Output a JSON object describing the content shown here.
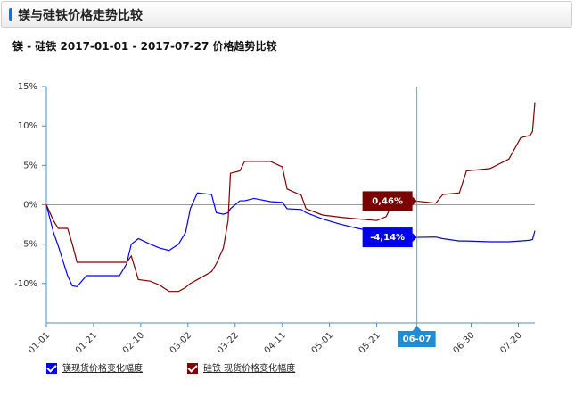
{
  "header": {
    "title": "镁与硅铁价格走势比较"
  },
  "chart_data": {
    "type": "line",
    "title": "镁 - 硅铁 2017-01-01 - 2017-07-27 价格趋势比较",
    "x": [
      "01-01",
      "01-04",
      "01-06",
      "01-10",
      "01-12",
      "01-14",
      "01-18",
      "02-01",
      "02-04",
      "02-06",
      "02-09",
      "02-14",
      "02-18",
      "02-22",
      "02-26",
      "03-01",
      "03-03",
      "03-06",
      "03-12",
      "03-14",
      "03-17",
      "03-19",
      "03-20",
      "03-24",
      "03-26",
      "03-30",
      "04-06",
      "04-11",
      "04-13",
      "04-19",
      "04-21",
      "04-28",
      "05-06",
      "05-13",
      "05-21",
      "05-25",
      "05-29",
      "06-07",
      "06-15",
      "06-18",
      "06-25",
      "06-28",
      "07-08",
      "07-16",
      "07-21",
      "07-25",
      "07-26",
      "07-27"
    ],
    "series": [
      {
        "name": "镁现货价格变化幅度",
        "color": "#0000ff",
        "values": [
          0,
          -3.5,
          -5.2,
          -9,
          -10.3,
          -10.4,
          -9,
          -9,
          -7.5,
          -5,
          -4.3,
          -5,
          -5.5,
          -5.8,
          -5,
          -3.5,
          -0.5,
          1.5,
          1.3,
          -1,
          -1.2,
          -1,
          -0.5,
          0.5,
          0.5,
          0.8,
          0.4,
          0.3,
          -0.5,
          -0.6,
          -1,
          -1.8,
          -2.5,
          -3,
          -3.5,
          -3.8,
          -4,
          -4.14,
          -4.1,
          -4.3,
          -4.6,
          -4.6,
          -4.7,
          -4.7,
          -4.6,
          -4.5,
          -4.4,
          -3.3
        ]
      },
      {
        "name": "硅铁 现货价格变化幅度",
        "color": "#800000",
        "values": [
          0,
          -2,
          -3,
          -3,
          -5,
          -7.3,
          -7.3,
          -7.3,
          -7.3,
          -6.5,
          -9.5,
          -9.7,
          -10.2,
          -11,
          -11,
          -10.5,
          -10,
          -9.5,
          -8.5,
          -7.5,
          -5.5,
          -2,
          4,
          4.3,
          5.5,
          5.5,
          5.5,
          4.8,
          2,
          1.2,
          -0.5,
          -1.3,
          -1.6,
          -1.8,
          -2,
          -1.5,
          1,
          0.46,
          0.2,
          1.3,
          1.5,
          4.3,
          4.6,
          5.8,
          8.5,
          8.8,
          9.3,
          13
        ]
      }
    ],
    "xlim": [
      "01-01",
      "07-27"
    ],
    "xticks": [
      "01-01",
      "01-21",
      "02-10",
      "03-02",
      "03-22",
      "04-11",
      "05-01",
      "05-21",
      "06-30",
      "07-20"
    ],
    "ylim": [
      -15,
      15
    ],
    "yticks": [
      {
        "value": 15,
        "label": "15%"
      },
      {
        "value": 10,
        "label": "10%"
      },
      {
        "value": 5,
        "label": "5%"
      },
      {
        "value": 0,
        "label": "0%"
      },
      {
        "value": -5,
        "label": "-5%"
      },
      {
        "value": -10,
        "label": "-10%"
      }
    ],
    "tooltip": {
      "x": "06-07",
      "crosshair_color": "#5aa9d6",
      "items": [
        {
          "value": 0.46,
          "label": "0,46%",
          "color": "#7b0000"
        },
        {
          "value": -4.14,
          "label": "-4,14%",
          "color": "#0000ee"
        }
      ]
    }
  }
}
